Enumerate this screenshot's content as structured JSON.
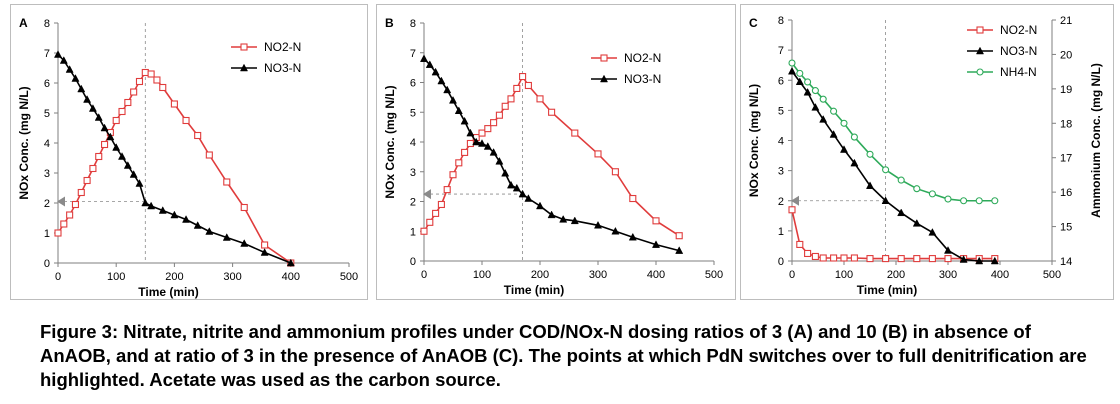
{
  "chart_data": [
    {
      "type": "line",
      "panel_label": "A",
      "xlabel": "Time (min)",
      "ylabel": "NOx Conc. (mg N/L)",
      "xlim": [
        0,
        500
      ],
      "ylim": [
        0,
        8
      ],
      "xticks": [
        0,
        100,
        200,
        300,
        400,
        500
      ],
      "yticks": [
        0,
        1,
        2,
        3,
        4,
        5,
        6,
        7,
        8
      ],
      "grid": false,
      "legend_position": "top-right",
      "switch_point": {
        "x": 150,
        "y": 2.05
      },
      "series": [
        {
          "name": "NO2-N",
          "color": "#e03c3c",
          "marker": "square",
          "x": [
            0,
            10,
            20,
            30,
            40,
            50,
            60,
            70,
            80,
            90,
            100,
            110,
            120,
            130,
            140,
            150,
            160,
            170,
            180,
            200,
            220,
            240,
            260,
            290,
            320,
            355,
            400
          ],
          "y": [
            1.0,
            1.3,
            1.6,
            1.95,
            2.35,
            2.75,
            3.15,
            3.55,
            3.95,
            4.35,
            4.75,
            5.05,
            5.35,
            5.7,
            6.05,
            6.35,
            6.3,
            6.1,
            5.85,
            5.3,
            4.75,
            4.25,
            3.6,
            2.7,
            1.85,
            0.6,
            0.0
          ]
        },
        {
          "name": "NO3-N",
          "color": "#000000",
          "marker": "triangle",
          "x": [
            0,
            10,
            20,
            30,
            40,
            50,
            60,
            70,
            80,
            90,
            100,
            110,
            120,
            130,
            140,
            150,
            160,
            180,
            200,
            220,
            240,
            260,
            290,
            320,
            355,
            400
          ],
          "y": [
            6.95,
            6.75,
            6.45,
            6.15,
            5.8,
            5.45,
            5.15,
            4.85,
            4.5,
            4.2,
            3.85,
            3.55,
            3.25,
            2.95,
            2.65,
            2.0,
            1.9,
            1.75,
            1.6,
            1.45,
            1.25,
            1.05,
            0.85,
            0.65,
            0.35,
            0.0
          ]
        }
      ]
    },
    {
      "type": "line",
      "panel_label": "B",
      "xlabel": "Time (min)",
      "ylabel": "NOx Conc. (mg N/L)",
      "xlim": [
        0,
        500
      ],
      "ylim": [
        0,
        8
      ],
      "xticks": [
        0,
        100,
        200,
        300,
        400,
        500
      ],
      "yticks": [
        0,
        1,
        2,
        3,
        4,
        5,
        6,
        7,
        8
      ],
      "grid": false,
      "legend_position": "top-right",
      "switch_point": {
        "x": 170,
        "y": 2.25
      },
      "series": [
        {
          "name": "NO2-N",
          "color": "#e03c3c",
          "marker": "square",
          "x": [
            0,
            10,
            20,
            30,
            40,
            50,
            60,
            70,
            80,
            90,
            100,
            110,
            120,
            130,
            140,
            150,
            160,
            170,
            180,
            200,
            220,
            260,
            300,
            330,
            360,
            400,
            440
          ],
          "y": [
            1.0,
            1.3,
            1.6,
            1.9,
            2.4,
            2.9,
            3.3,
            3.65,
            3.95,
            4.15,
            4.3,
            4.45,
            4.65,
            4.9,
            5.2,
            5.45,
            5.8,
            6.2,
            5.9,
            5.45,
            5.0,
            4.3,
            3.6,
            3.0,
            2.1,
            1.35,
            0.85
          ]
        },
        {
          "name": "NO3-N",
          "color": "#000000",
          "marker": "triangle",
          "x": [
            0,
            10,
            20,
            30,
            40,
            50,
            60,
            70,
            80,
            90,
            100,
            110,
            120,
            130,
            140,
            150,
            160,
            170,
            180,
            200,
            220,
            240,
            260,
            300,
            330,
            360,
            400,
            440
          ],
          "y": [
            6.8,
            6.6,
            6.35,
            6.05,
            5.75,
            5.4,
            5.05,
            4.7,
            4.3,
            4.0,
            3.95,
            3.85,
            3.65,
            3.35,
            2.95,
            2.55,
            2.45,
            2.25,
            2.1,
            1.85,
            1.55,
            1.4,
            1.35,
            1.2,
            1.0,
            0.8,
            0.55,
            0.35
          ]
        }
      ]
    },
    {
      "type": "line",
      "panel_label": "C",
      "xlabel": "Time (min)",
      "ylabel": "NOx Conc. (mg N/L)",
      "ylabel_right": "Ammonium Conc. (mg N/L)",
      "xlim": [
        0,
        500
      ],
      "ylim": [
        0,
        8
      ],
      "ylim_right": [
        14,
        21
      ],
      "xticks": [
        0,
        100,
        200,
        300,
        400,
        500
      ],
      "yticks": [
        0,
        1,
        2,
        3,
        4,
        5,
        6,
        7,
        8
      ],
      "yticks_right": [
        14,
        15,
        16,
        17,
        18,
        19,
        20,
        21
      ],
      "grid": false,
      "legend_position": "top-right",
      "switch_point": {
        "x": 180,
        "y": 2.0
      },
      "series": [
        {
          "name": "NO2-N",
          "color": "#e03c3c",
          "marker": "square",
          "axis": "left",
          "x": [
            0,
            15,
            30,
            45,
            60,
            80,
            100,
            120,
            150,
            180,
            210,
            240,
            270,
            300,
            330,
            360,
            390
          ],
          "y": [
            1.7,
            0.55,
            0.25,
            0.15,
            0.1,
            0.1,
            0.1,
            0.1,
            0.08,
            0.08,
            0.08,
            0.08,
            0.08,
            0.08,
            0.08,
            0.08,
            0.08
          ]
        },
        {
          "name": "NO3-N",
          "color": "#000000",
          "marker": "triangle",
          "axis": "left",
          "x": [
            0,
            15,
            30,
            45,
            60,
            80,
            100,
            120,
            150,
            180,
            210,
            240,
            270,
            300,
            330,
            360,
            390
          ],
          "y": [
            6.3,
            5.95,
            5.6,
            5.1,
            4.7,
            4.2,
            3.7,
            3.25,
            2.5,
            2.0,
            1.6,
            1.25,
            0.95,
            0.35,
            0.05,
            0.0,
            0.0
          ]
        },
        {
          "name": "NH4-N",
          "color": "#2eaa5a",
          "marker": "circle",
          "axis": "right",
          "x": [
            0,
            15,
            30,
            45,
            60,
            80,
            100,
            120,
            150,
            180,
            210,
            240,
            270,
            300,
            330,
            360,
            390
          ],
          "y": [
            19.75,
            19.45,
            19.2,
            18.95,
            18.7,
            18.35,
            18.0,
            17.6,
            17.1,
            16.65,
            16.35,
            16.1,
            15.95,
            15.8,
            15.75,
            15.75,
            15.75
          ]
        }
      ]
    }
  ],
  "caption": {
    "lead": "Figure 3:",
    "text": "Nitrate, nitrite and ammonium profiles under COD/NOx-N dosing ratios of 3 (A) and 10 (B) in absence of AnAOB, and at ratio of 3 in the presence of AnAOB (C). The points at which PdN switches over to full denitrification are highlighted. Acetate was used as the carbon source."
  }
}
